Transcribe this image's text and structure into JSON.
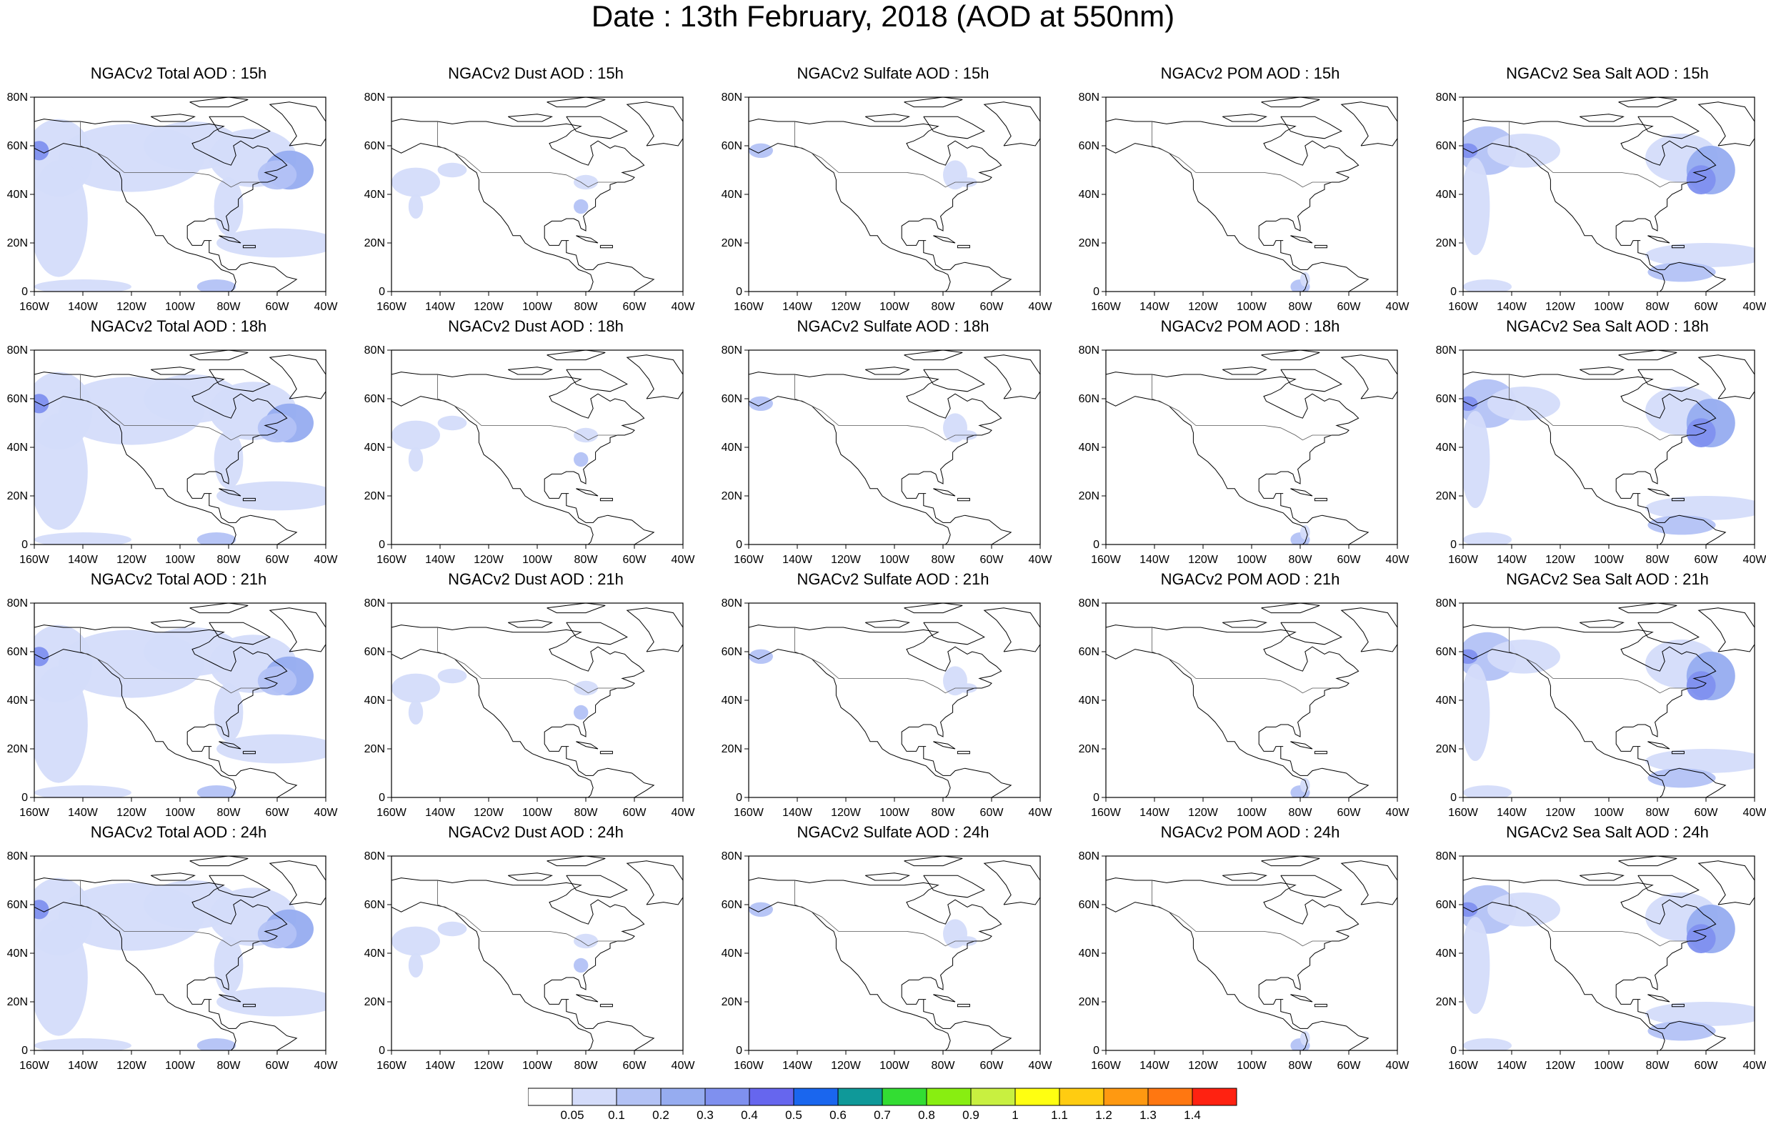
{
  "figure": {
    "title": "Date : 13th February, 2018 (AOD at 550nm)"
  },
  "map_axes": {
    "lat_ticks": [
      "80N",
      "60N",
      "40N",
      "20N",
      "0"
    ],
    "lon_ticks": [
      "160W",
      "140W",
      "120W",
      "100W",
      "80W",
      "60W",
      "40W"
    ],
    "extent": {
      "lon_min": -160,
      "lon_max": -40,
      "lat_min": 0,
      "lat_max": 80
    }
  },
  "chart_data": {
    "type": "heatmap",
    "title": "Date : 13th February, 2018 (AOD at 550nm)",
    "columns": [
      "Total",
      "Dust",
      "Sulfate",
      "POM",
      "Sea Salt"
    ],
    "rows": [
      "15h",
      "18h",
      "21h",
      "24h"
    ],
    "panel_titles": [
      [
        "NGACv2 Total AOD : 15h",
        "NGACv2 Dust AOD : 15h",
        "NGACv2 Sulfate AOD : 15h",
        "NGACv2 POM AOD : 15h",
        "NGACv2 Sea Salt AOD : 15h"
      ],
      [
        "NGACv2 Total AOD : 18h",
        "NGACv2 Dust AOD : 18h",
        "NGACv2 Sulfate AOD : 18h",
        "NGACv2 POM AOD : 18h",
        "NGACv2 Sea Salt AOD : 18h"
      ],
      [
        "NGACv2 Total AOD : 21h",
        "NGACv2 Dust AOD : 21h",
        "NGACv2 Sulfate AOD : 21h",
        "NGACv2 POM AOD : 21h",
        "NGACv2 Sea Salt AOD : 21h"
      ],
      [
        "NGACv2 Total AOD : 24h",
        "NGACv2 Dust AOD : 24h",
        "NGACv2 Sulfate AOD : 24h",
        "NGACv2 POM AOD : 24h",
        "NGACv2 Sea Salt  AOD : 24h"
      ]
    ],
    "colorbar": {
      "levels": [
        "0.05",
        "0.1",
        "0.2",
        "0.3",
        "0.4",
        "0.5",
        "0.6",
        "0.7",
        "0.8",
        "0.9",
        "1",
        "1.1",
        "1.2",
        "1.3",
        "1.4"
      ],
      "colors": [
        "#ffffff",
        "#d4dcfa",
        "#b3c2f5",
        "#96acf0",
        "#7f90ef",
        "#6666ee",
        "#1a66ee",
        "#0f9999",
        "#33dd33",
        "#88ee11",
        "#c8f040",
        "#ffff11",
        "#ffcc11",
        "#ff9911",
        "#ff7711",
        "#ff2211"
      ]
    }
  }
}
